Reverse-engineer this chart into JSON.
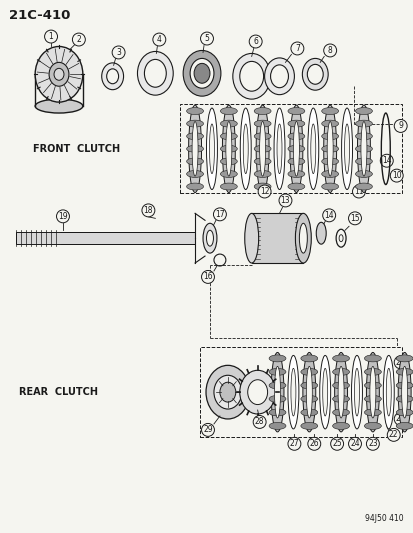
{
  "title": "21C-410",
  "footer": "94J50 410",
  "front_clutch_label": "FRONT  CLUTCH",
  "rear_clutch_label": "REAR  CLUTCH",
  "bg_color": "#f5f5f0",
  "line_color": "#1a1a1a",
  "fig_width": 4.14,
  "fig_height": 5.33,
  "dpi": 100
}
